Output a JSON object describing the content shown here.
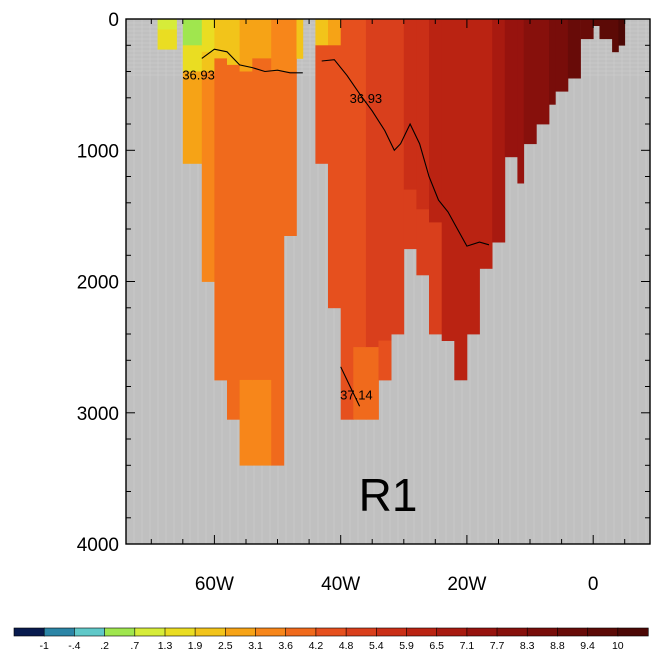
{
  "chart_data": {
    "type": "heatmap",
    "title": "",
    "xlabel": "",
    "ylabel": "",
    "x_range": [
      -74,
      9
    ],
    "y_range": [
      0,
      4000
    ],
    "y_inverted": true,
    "x_ticks": [
      {
        "value": -60,
        "label": "60W"
      },
      {
        "value": -40,
        "label": "40W"
      },
      {
        "value": -20,
        "label": "20W"
      },
      {
        "value": 0,
        "label": "0"
      }
    ],
    "y_ticks": [
      {
        "value": 0,
        "label": "0"
      },
      {
        "value": 1000,
        "label": "1000"
      },
      {
        "value": 2000,
        "label": "2000"
      },
      {
        "value": 3000,
        "label": "3000"
      },
      {
        "value": 4000,
        "label": "4000"
      }
    ],
    "missing_color": "#c0c0c0",
    "panel_label": "R1",
    "colorbar": {
      "labels": [
        "-1",
        "-.4",
        ".2",
        ".7",
        "1.3",
        "1.9",
        "2.5",
        "3.1",
        "3.6",
        "4.2",
        "4.8",
        "5.4",
        "5.9",
        "6.5",
        "7.1",
        "7.7",
        "8.3",
        "8.8",
        "9.4",
        "10"
      ],
      "colors": [
        "#081a4e",
        "#2b85a6",
        "#5fc8c8",
        "#9fe64e",
        "#d6ec39",
        "#eadd22",
        "#f2c41a",
        "#f6a316",
        "#f7861a",
        "#f06a1c",
        "#e6501e",
        "#d93f1c",
        "#ca2f17",
        "#ba2312",
        "#a81a10",
        "#97130e",
        "#87100c",
        "#780d0a",
        "#680b08",
        "#5c0a06",
        "#4c0805"
      ]
    },
    "columns": [
      {
        "x": [
          -69,
          -66
        ],
        "cells": [
          [
            0,
            80,
            "#d6ec39"
          ],
          [
            80,
            230,
            "#eadd22"
          ]
        ]
      },
      {
        "x": [
          -65,
          -62
        ],
        "cells": [
          [
            0,
            200,
            "#a0e64e"
          ],
          [
            200,
            400,
            "#eadd22"
          ],
          [
            400,
            1100,
            "#f6a316"
          ]
        ]
      },
      {
        "x": [
          -62,
          -60
        ],
        "cells": [
          [
            0,
            250,
            "#eadd22"
          ],
          [
            250,
            400,
            "#f2c41a"
          ],
          [
            400,
            2000,
            "#f7861a"
          ]
        ]
      },
      {
        "x": [
          -60,
          -58
        ],
        "cells": [
          [
            0,
            300,
            "#f2c41a"
          ],
          [
            300,
            2750,
            "#f06a1c"
          ]
        ]
      },
      {
        "x": [
          -58,
          -56
        ],
        "cells": [
          [
            0,
            350,
            "#f2c41a"
          ],
          [
            350,
            3050,
            "#f06a1c"
          ]
        ]
      },
      {
        "x": [
          -56,
          -54
        ],
        "cells": [
          [
            0,
            400,
            "#f6a316"
          ],
          [
            400,
            2750,
            "#f06a1c"
          ],
          [
            2750,
            3400,
            "#f7861a"
          ]
        ]
      },
      {
        "x": [
          -54,
          -51
        ],
        "cells": [
          [
            0,
            300,
            "#f6a316"
          ],
          [
            300,
            2750,
            "#f06a1c"
          ],
          [
            2750,
            3400,
            "#f7861a"
          ]
        ]
      },
      {
        "x": [
          -51,
          -49
        ],
        "cells": [
          [
            0,
            400,
            "#f7861a"
          ],
          [
            400,
            3400,
            "#f06a1c"
          ]
        ]
      },
      {
        "x": [
          -49,
          -47
        ],
        "cells": [
          [
            0,
            400,
            "#f7861a"
          ],
          [
            400,
            1650,
            "#f06a1c"
          ]
        ]
      },
      {
        "x": [
          -47,
          -46
        ],
        "cells": [
          [
            0,
            300,
            "#f2c41a"
          ]
        ]
      },
      {
        "x": [
          -44,
          -42
        ],
        "cells": [
          [
            0,
            200,
            "#f2c41a"
          ],
          [
            200,
            1100,
            "#e6501e"
          ]
        ]
      },
      {
        "x": [
          -42,
          -40
        ],
        "cells": [
          [
            0,
            200,
            "#f6a316"
          ],
          [
            200,
            2200,
            "#e6501e"
          ]
        ]
      },
      {
        "x": [
          -40,
          -38
        ],
        "cells": [
          [
            0,
            3050,
            "#e6501e"
          ]
        ]
      },
      {
        "x": [
          -38,
          -36
        ],
        "cells": [
          [
            0,
            2500,
            "#e6501e"
          ],
          [
            2500,
            3050,
            "#f06a1c"
          ]
        ]
      },
      {
        "x": [
          -36,
          -34
        ],
        "cells": [
          [
            0,
            2500,
            "#d93f1c"
          ],
          [
            2500,
            3050,
            "#f06a1c"
          ]
        ]
      },
      {
        "x": [
          -34,
          -32
        ],
        "cells": [
          [
            0,
            2450,
            "#d93f1c"
          ],
          [
            2450,
            2750,
            "#e6501e"
          ]
        ]
      },
      {
        "x": [
          -32,
          -30
        ],
        "cells": [
          [
            0,
            2400,
            "#d93f1c"
          ]
        ]
      },
      {
        "x": [
          -30,
          -28
        ],
        "cells": [
          [
            0,
            1300,
            "#ca2f17"
          ],
          [
            1300,
            1750,
            "#d93f1c"
          ]
        ]
      },
      {
        "x": [
          -28,
          -26
        ],
        "cells": [
          [
            0,
            1450,
            "#ca2f17"
          ],
          [
            1450,
            1950,
            "#d93f1c"
          ]
        ]
      },
      {
        "x": [
          -26,
          -24
        ],
        "cells": [
          [
            0,
            1550,
            "#ba2312"
          ],
          [
            1550,
            2400,
            "#d93f1c"
          ]
        ]
      },
      {
        "x": [
          -24,
          -22
        ],
        "cells": [
          [
            0,
            2450,
            "#ba2312"
          ]
        ]
      },
      {
        "x": [
          -22,
          -20
        ],
        "cells": [
          [
            0,
            2750,
            "#ba2312"
          ]
        ]
      },
      {
        "x": [
          -20,
          -18
        ],
        "cells": [
          [
            0,
            2400,
            "#ba2312"
          ]
        ]
      },
      {
        "x": [
          -18,
          -16
        ],
        "cells": [
          [
            0,
            1900,
            "#ba2312"
          ]
        ]
      },
      {
        "x": [
          -16,
          -14
        ],
        "cells": [
          [
            0,
            1700,
            "#a81a10"
          ]
        ]
      },
      {
        "x": [
          -14,
          -12
        ],
        "cells": [
          [
            0,
            1050,
            "#97130e"
          ]
        ]
      },
      {
        "x": [
          -12,
          -11
        ],
        "cells": [
          [
            0,
            1250,
            "#97130e"
          ]
        ]
      },
      {
        "x": [
          -11,
          -9
        ],
        "cells": [
          [
            0,
            950,
            "#87100c"
          ]
        ]
      },
      {
        "x": [
          -9,
          -7
        ],
        "cells": [
          [
            0,
            800,
            "#87100c"
          ]
        ]
      },
      {
        "x": [
          -7,
          -6
        ],
        "cells": [
          [
            0,
            650,
            "#780d0a"
          ]
        ]
      },
      {
        "x": [
          -6,
          -4
        ],
        "cells": [
          [
            0,
            550,
            "#780d0a"
          ]
        ]
      },
      {
        "x": [
          -4,
          -2
        ],
        "cells": [
          [
            0,
            450,
            "#680b08"
          ]
        ]
      },
      {
        "x": [
          -2,
          0
        ],
        "cells": [
          [
            0,
            150,
            "#680b08"
          ]
        ]
      },
      {
        "x": [
          0,
          1
        ],
        "cells": [
          [
            0,
            50,
            "#5c0a06"
          ]
        ]
      },
      {
        "x": [
          1,
          3
        ],
        "cells": [
          [
            0,
            150,
            "#5c0a06"
          ]
        ]
      },
      {
        "x": [
          3,
          4
        ],
        "cells": [
          [
            0,
            250,
            "#5c0a06"
          ]
        ]
      },
      {
        "x": [
          4,
          5
        ],
        "cells": [
          [
            0,
            200,
            "#4c0805"
          ]
        ]
      }
    ],
    "contours": [
      {
        "label": "36.93",
        "label_pos": [
          -62.5,
          460
        ],
        "points": [
          [
            -62,
            300
          ],
          [
            -60,
            230
          ],
          [
            -58,
            250
          ],
          [
            -56,
            350
          ],
          [
            -54,
            370
          ],
          [
            -52,
            400
          ],
          [
            -50,
            390
          ],
          [
            -48,
            410
          ],
          [
            -46,
            410
          ]
        ]
      },
      {
        "label": "36.93",
        "label_pos": [
          -36,
          640
        ],
        "points": [
          [
            -43,
            320
          ],
          [
            -41,
            310
          ],
          [
            -39,
            430
          ],
          [
            -37,
            570
          ],
          [
            -35,
            700
          ],
          [
            -33,
            850
          ],
          [
            -31.5,
            1000
          ],
          [
            -30.5,
            950
          ],
          [
            -29,
            800
          ],
          [
            -27.5,
            950
          ],
          [
            -26,
            1200
          ],
          [
            -24.5,
            1380
          ],
          [
            -23,
            1470
          ],
          [
            -21.5,
            1600
          ],
          [
            -20,
            1730
          ],
          [
            -18,
            1700
          ],
          [
            -16.5,
            1720
          ]
        ]
      },
      {
        "label": "37.14",
        "label_pos": [
          -37.5,
          2900
        ],
        "points": [
          [
            -40,
            2650
          ],
          [
            -38.5,
            2800
          ],
          [
            -37,
            2950
          ]
        ]
      }
    ]
  }
}
